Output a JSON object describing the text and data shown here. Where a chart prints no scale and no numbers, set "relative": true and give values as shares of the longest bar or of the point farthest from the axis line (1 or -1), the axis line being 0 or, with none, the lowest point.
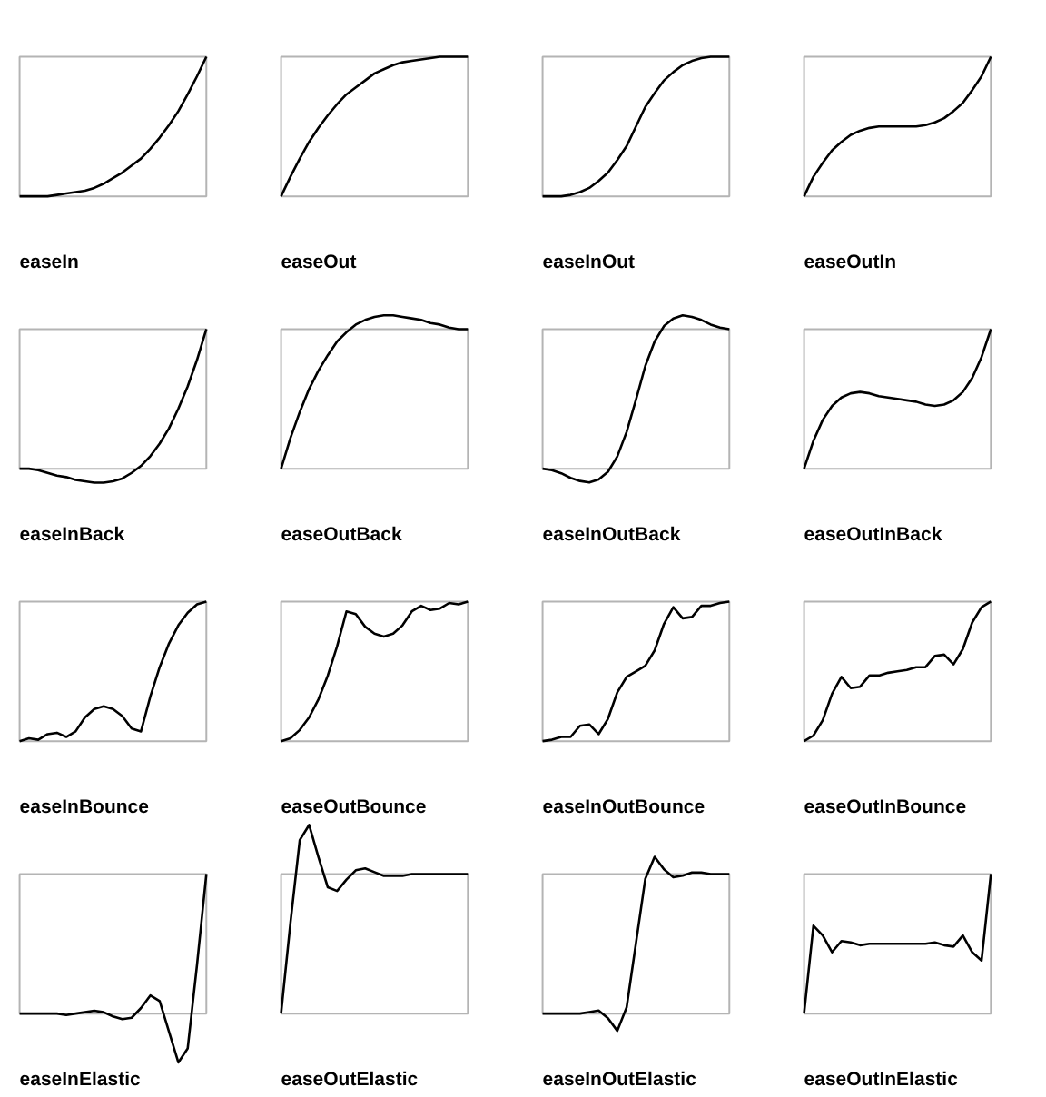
{
  "chart_data": [
    {
      "type": "line",
      "xlabel": "easeIn",
      "relative": true,
      "categories": [
        null,
        null,
        null,
        null,
        null,
        null,
        null,
        null,
        null,
        null,
        null,
        null,
        null,
        null,
        null,
        null,
        null,
        null,
        null,
        null,
        null
      ],
      "series": [
        {
          "color": "#000000",
          "values": [
            0,
            0,
            0,
            0,
            0.01,
            0.02,
            0.03,
            0.04,
            0.06,
            0.09,
            0.13,
            0.17,
            0.22,
            0.27,
            0.34,
            0.42,
            0.51,
            0.61,
            0.73,
            0.86,
            1
          ]
        }
      ]
    },
    {
      "type": "line",
      "xlabel": "easeOut",
      "relative": true,
      "categories": [
        null,
        null,
        null,
        null,
        null,
        null,
        null,
        null,
        null,
        null,
        null,
        null,
        null,
        null,
        null,
        null,
        null,
        null,
        null,
        null,
        null
      ],
      "series": [
        {
          "color": "#000000",
          "values": [
            0,
            0.14,
            0.27,
            0.39,
            0.49,
            0.58,
            0.66,
            0.73,
            0.78,
            0.83,
            0.88,
            0.91,
            0.94,
            0.96,
            0.97,
            0.98,
            0.99,
            1,
            1,
            1,
            1
          ]
        }
      ]
    },
    {
      "type": "line",
      "xlabel": "easeInOut",
      "relative": true,
      "categories": [
        null,
        null,
        null,
        null,
        null,
        null,
        null,
        null,
        null,
        null,
        null,
        null,
        null,
        null,
        null,
        null,
        null,
        null,
        null,
        null,
        null
      ],
      "series": [
        {
          "color": "#000000",
          "values": [
            0,
            0,
            0,
            0.01,
            0.03,
            0.06,
            0.11,
            0.17,
            0.26,
            0.36,
            0.5,
            0.64,
            0.74,
            0.83,
            0.89,
            0.94,
            0.97,
            0.99,
            1,
            1,
            1
          ]
        }
      ]
    },
    {
      "type": "line",
      "xlabel": "easeOutIn",
      "relative": true,
      "categories": [
        null,
        null,
        null,
        null,
        null,
        null,
        null,
        null,
        null,
        null,
        null,
        null,
        null,
        null,
        null,
        null,
        null,
        null,
        null,
        null,
        null
      ],
      "series": [
        {
          "color": "#000000",
          "values": [
            0,
            0.14,
            0.24,
            0.33,
            0.39,
            0.44,
            0.47,
            0.49,
            0.5,
            0.5,
            0.5,
            0.5,
            0.5,
            0.51,
            0.53,
            0.56,
            0.61,
            0.67,
            0.76,
            0.86,
            1
          ]
        }
      ]
    },
    {
      "type": "line",
      "xlabel": "easeInBack",
      "relative": true,
      "categories": [
        null,
        null,
        null,
        null,
        null,
        null,
        null,
        null,
        null,
        null,
        null,
        null,
        null,
        null,
        null,
        null,
        null,
        null,
        null,
        null,
        null
      ],
      "series": [
        {
          "color": "#000000",
          "values": [
            0,
            0,
            -0.01,
            -0.03,
            -0.05,
            -0.06,
            -0.08,
            -0.09,
            -0.1,
            -0.1,
            -0.09,
            -0.07,
            -0.03,
            0.02,
            0.09,
            0.18,
            0.29,
            0.43,
            0.59,
            0.78,
            1
          ]
        }
      ]
    },
    {
      "type": "line",
      "xlabel": "easeOutBack",
      "relative": true,
      "categories": [
        null,
        null,
        null,
        null,
        null,
        null,
        null,
        null,
        null,
        null,
        null,
        null,
        null,
        null,
        null,
        null,
        null,
        null,
        null,
        null,
        null
      ],
      "series": [
        {
          "color": "#000000",
          "values": [
            0,
            0.2,
            0.37,
            0.52,
            0.64,
            0.74,
            0.83,
            0.89,
            0.94,
            0.97,
            0.99,
            1,
            1,
            0.99,
            0.98,
            0.97,
            0.95,
            0.94,
            0.92,
            0.91,
            0.91
          ]
        }
      ]
    },
    {
      "type": "line",
      "xlabel": "easeInOutBack",
      "relative": true,
      "categories": [
        null,
        null,
        null,
        null,
        null,
        null,
        null,
        null,
        null,
        null,
        null,
        null,
        null,
        null,
        null,
        null,
        null,
        null,
        null,
        null,
        null
      ],
      "series": [
        {
          "color": "#000000",
          "values": [
            0,
            -0.01,
            -0.03,
            -0.06,
            -0.08,
            -0.09,
            -0.07,
            -0.02,
            0.08,
            0.24,
            0.45,
            0.67,
            0.83,
            0.93,
            0.98,
            1,
            0.99,
            0.97,
            0.94,
            0.92,
            0.91
          ]
        }
      ]
    },
    {
      "type": "line",
      "xlabel": "easeOutInBack",
      "relative": true,
      "categories": [
        null,
        null,
        null,
        null,
        null,
        null,
        null,
        null,
        null,
        null,
        null,
        null,
        null,
        null,
        null,
        null,
        null,
        null,
        null,
        null,
        null
      ],
      "series": [
        {
          "color": "#000000",
          "values": [
            0,
            0.2,
            0.35,
            0.45,
            0.51,
            0.54,
            0.55,
            0.54,
            0.52,
            0.51,
            0.5,
            0.49,
            0.48,
            0.46,
            0.45,
            0.46,
            0.49,
            0.55,
            0.65,
            0.8,
            1
          ]
        }
      ]
    },
    {
      "type": "line",
      "xlabel": "easeInBounce",
      "relative": true,
      "categories": [
        null,
        null,
        null,
        null,
        null,
        null,
        null,
        null,
        null,
        null,
        null,
        null,
        null,
        null,
        null,
        null,
        null,
        null,
        null,
        null,
        null
      ],
      "series": [
        {
          "color": "#000000",
          "values": [
            0,
            0.02,
            0.01,
            0.05,
            0.06,
            0.03,
            0.07,
            0.17,
            0.23,
            0.25,
            0.23,
            0.18,
            0.09,
            0.07,
            0.32,
            0.53,
            0.7,
            0.83,
            0.92,
            0.98,
            1
          ]
        }
      ]
    },
    {
      "type": "line",
      "xlabel": "easeOutBounce",
      "relative": true,
      "categories": [
        null,
        null,
        null,
        null,
        null,
        null,
        null,
        null,
        null,
        null,
        null,
        null,
        null,
        null,
        null,
        null,
        null,
        null,
        null,
        null,
        null
      ],
      "series": [
        {
          "color": "#000000",
          "values": [
            0,
            0.02,
            0.08,
            0.17,
            0.3,
            0.47,
            0.68,
            0.93,
            0.91,
            0.82,
            0.77,
            0.75,
            0.77,
            0.83,
            0.93,
            0.97,
            0.94,
            0.95,
            0.99,
            0.98,
            1
          ]
        }
      ]
    },
    {
      "type": "line",
      "xlabel": "easeInOutBounce",
      "relative": true,
      "categories": [
        null,
        null,
        null,
        null,
        null,
        null,
        null,
        null,
        null,
        null,
        null,
        null,
        null,
        null,
        null,
        null,
        null,
        null,
        null,
        null,
        null
      ],
      "series": [
        {
          "color": "#000000",
          "values": [
            0,
            0.01,
            0.03,
            0.03,
            0.11,
            0.12,
            0.05,
            0.16,
            0.35,
            0.46,
            0.5,
            0.54,
            0.65,
            0.84,
            0.96,
            0.88,
            0.89,
            0.97,
            0.97,
            0.99,
            1
          ]
        }
      ]
    },
    {
      "type": "line",
      "xlabel": "easeOutInBounce",
      "relative": true,
      "categories": [
        null,
        null,
        null,
        null,
        null,
        null,
        null,
        null,
        null,
        null,
        null,
        null,
        null,
        null,
        null,
        null,
        null,
        null,
        null,
        null,
        null
      ],
      "series": [
        {
          "color": "#000000",
          "values": [
            0,
            0.04,
            0.15,
            0.34,
            0.46,
            0.38,
            0.39,
            0.47,
            0.47,
            0.49,
            0.5,
            0.51,
            0.53,
            0.53,
            0.61,
            0.62,
            0.55,
            0.66,
            0.85,
            0.96,
            1
          ]
        }
      ]
    },
    {
      "type": "line",
      "xlabel": "easeInElastic",
      "relative": true,
      "categories": [
        null,
        null,
        null,
        null,
        null,
        null,
        null,
        null,
        null,
        null,
        null,
        null,
        null,
        null,
        null,
        null,
        null,
        null,
        null,
        null,
        null
      ],
      "series": [
        {
          "color": "#000000",
          "values": [
            0,
            0,
            0,
            0,
            0,
            -0.01,
            0,
            0.01,
            0.02,
            0.01,
            -0.02,
            -0.04,
            -0.03,
            0.04,
            0.13,
            0.09,
            -0.13,
            -0.35,
            -0.25,
            0.35,
            1
          ]
        }
      ]
    },
    {
      "type": "line",
      "xlabel": "easeOutElastic",
      "relative": true,
      "categories": [
        null,
        null,
        null,
        null,
        null,
        null,
        null,
        null,
        null,
        null,
        null,
        null,
        null,
        null,
        null,
        null,
        null,
        null,
        null,
        null,
        null
      ],
      "series": [
        {
          "color": "#000000",
          "values": [
            0,
            0.48,
            0.92,
            1,
            0.83,
            0.67,
            0.65,
            0.71,
            0.76,
            0.77,
            0.75,
            0.73,
            0.73,
            0.73,
            0.74,
            0.74,
            0.74,
            0.74,
            0.74,
            0.74,
            0.74
          ]
        }
      ]
    },
    {
      "type": "line",
      "xlabel": "easeInOutElastic",
      "relative": true,
      "categories": [
        null,
        null,
        null,
        null,
        null,
        null,
        null,
        null,
        null,
        null,
        null,
        null,
        null,
        null,
        null,
        null,
        null,
        null,
        null,
        null,
        null
      ],
      "series": [
        {
          "color": "#000000",
          "values": [
            0,
            0,
            0,
            0,
            0,
            0.01,
            0.02,
            -0.03,
            -0.11,
            0.04,
            0.45,
            0.86,
            1,
            0.92,
            0.87,
            0.88,
            0.9,
            0.9,
            0.89,
            0.89,
            0.89
          ]
        }
      ]
    },
    {
      "type": "line",
      "xlabel": "easeOutInElastic",
      "relative": true,
      "categories": [
        null,
        null,
        null,
        null,
        null,
        null,
        null,
        null,
        null,
        null,
        null,
        null,
        null,
        null,
        null,
        null,
        null,
        null,
        null,
        null,
        null
      ],
      "series": [
        {
          "color": "#000000",
          "values": [
            0,
            0.63,
            0.56,
            0.44,
            0.52,
            0.51,
            0.49,
            0.5,
            0.5,
            0.5,
            0.5,
            0.5,
            0.5,
            0.5,
            0.51,
            0.49,
            0.48,
            0.56,
            0.44,
            0.38,
            1
          ]
        }
      ]
    }
  ]
}
